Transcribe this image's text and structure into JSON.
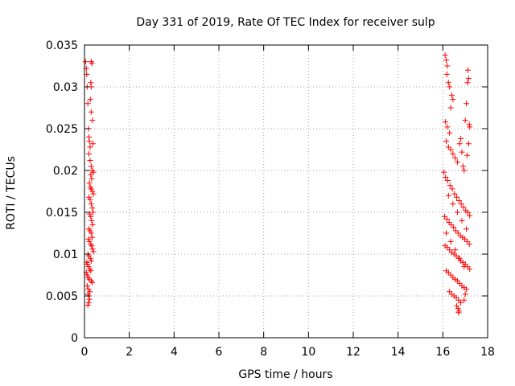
{
  "chart_data": {
    "type": "scatter",
    "title": "Day 331 of 2019, Rate Of TEC Index for receiver sulp",
    "xlabel": "GPS time / hours",
    "ylabel": "ROTI / TECUs",
    "xlim": [
      0,
      18
    ],
    "ylim": [
      0,
      0.035
    ],
    "grid": true,
    "marker": "+",
    "series_color": "#ff0000",
    "xticks": [
      0,
      2,
      4,
      6,
      8,
      10,
      12,
      14,
      16,
      18
    ],
    "xtick_labels": [
      "0",
      "2",
      "4",
      "6",
      "8",
      "10",
      "12",
      "14",
      "16",
      "18"
    ],
    "yticks": [
      0,
      0.005,
      0.01,
      0.015,
      0.02,
      0.025,
      0.03,
      0.035
    ],
    "ytick_labels": [
      "0",
      "0.005",
      "0.01",
      "0.015",
      "0.02",
      "0.025",
      "0.03",
      "0.035"
    ],
    "series": [
      {
        "name": "ROTI",
        "points": [
          [
            0.05,
            0.033
          ],
          [
            0.08,
            0.0322
          ],
          [
            0.1,
            0.0315
          ],
          [
            0.12,
            0.03
          ],
          [
            0.15,
            0.028
          ],
          [
            0.18,
            0.025
          ],
          [
            0.2,
            0.024
          ],
          [
            0.22,
            0.0235
          ],
          [
            0.25,
            0.0228
          ],
          [
            0.3,
            0.033
          ],
          [
            0.33,
            0.0328
          ],
          [
            0.28,
            0.0305
          ],
          [
            0.3,
            0.03
          ],
          [
            0.26,
            0.0285
          ],
          [
            0.3,
            0.027
          ],
          [
            0.35,
            0.026
          ],
          [
            0.38,
            0.0232
          ],
          [
            0.2,
            0.022
          ],
          [
            0.25,
            0.0212
          ],
          [
            0.3,
            0.0205
          ],
          [
            0.35,
            0.02
          ],
          [
            0.4,
            0.0198
          ],
          [
            0.28,
            0.0195
          ],
          [
            0.32,
            0.019
          ],
          [
            0.22,
            0.0185
          ],
          [
            0.26,
            0.018
          ],
          [
            0.3,
            0.0178
          ],
          [
            0.35,
            0.0175
          ],
          [
            0.4,
            0.0172
          ],
          [
            0.2,
            0.0168
          ],
          [
            0.25,
            0.0165
          ],
          [
            0.3,
            0.016
          ],
          [
            0.35,
            0.0155
          ],
          [
            0.38,
            0.015
          ],
          [
            0.22,
            0.0148
          ],
          [
            0.28,
            0.0145
          ],
          [
            0.32,
            0.014
          ],
          [
            0.36,
            0.0135
          ],
          [
            0.2,
            0.013
          ],
          [
            0.25,
            0.0128
          ],
          [
            0.3,
            0.0125
          ],
          [
            0.34,
            0.012
          ],
          [
            0.18,
            0.0118
          ],
          [
            0.22,
            0.0115
          ],
          [
            0.28,
            0.0112
          ],
          [
            0.32,
            0.011
          ],
          [
            0.36,
            0.0106
          ],
          [
            0.4,
            0.0103
          ],
          [
            0.15,
            0.01
          ],
          [
            0.2,
            0.0098
          ],
          [
            0.26,
            0.0095
          ],
          [
            0.3,
            0.0092
          ],
          [
            0.1,
            0.009
          ],
          [
            0.14,
            0.0088
          ],
          [
            0.18,
            0.0085
          ],
          [
            0.24,
            0.0082
          ],
          [
            0.28,
            0.008
          ],
          [
            0.08,
            0.0078
          ],
          [
            0.12,
            0.0075
          ],
          [
            0.16,
            0.0072
          ],
          [
            0.22,
            0.007
          ],
          [
            0.3,
            0.0068
          ],
          [
            0.35,
            0.0066
          ],
          [
            0.12,
            0.0062
          ],
          [
            0.18,
            0.0058
          ],
          [
            0.24,
            0.0055
          ],
          [
            0.15,
            0.0052
          ],
          [
            0.2,
            0.005
          ],
          [
            0.22,
            0.0046
          ],
          [
            0.18,
            0.0042
          ],
          [
            0.15,
            0.0039
          ],
          [
            16.1,
            0.0338
          ],
          [
            16.15,
            0.0332
          ],
          [
            16.2,
            0.0325
          ],
          [
            16.18,
            0.0315
          ],
          [
            16.25,
            0.0305
          ],
          [
            16.3,
            0.03
          ],
          [
            16.4,
            0.029
          ],
          [
            16.45,
            0.0285
          ],
          [
            16.35,
            0.0275
          ],
          [
            16.12,
            0.0258
          ],
          [
            16.2,
            0.0252
          ],
          [
            16.3,
            0.0245
          ],
          [
            16.15,
            0.0235
          ],
          [
            16.25,
            0.0228
          ],
          [
            16.35,
            0.0225
          ],
          [
            16.45,
            0.022
          ],
          [
            16.55,
            0.0215
          ],
          [
            16.65,
            0.021
          ],
          [
            16.75,
            0.0232
          ],
          [
            16.8,
            0.0238
          ],
          [
            16.85,
            0.0222
          ],
          [
            16.9,
            0.0205
          ],
          [
            16.95,
            0.02
          ],
          [
            17.0,
            0.026
          ],
          [
            17.05,
            0.028
          ],
          [
            17.1,
            0.0305
          ],
          [
            17.12,
            0.032
          ],
          [
            17.15,
            0.031
          ],
          [
            17.18,
            0.0255
          ],
          [
            17.2,
            0.0252
          ],
          [
            17.15,
            0.0232
          ],
          [
            17.08,
            0.0218
          ],
          [
            16.05,
            0.0198
          ],
          [
            16.12,
            0.0192
          ],
          [
            16.22,
            0.0188
          ],
          [
            16.32,
            0.0182
          ],
          [
            16.42,
            0.0178
          ],
          [
            16.52,
            0.0172
          ],
          [
            16.62,
            0.0168
          ],
          [
            16.72,
            0.0164
          ],
          [
            16.82,
            0.016
          ],
          [
            16.92,
            0.0156
          ],
          [
            17.02,
            0.0152
          ],
          [
            17.12,
            0.015
          ],
          [
            17.2,
            0.0146
          ],
          [
            16.08,
            0.0145
          ],
          [
            16.18,
            0.0142
          ],
          [
            16.28,
            0.0138
          ],
          [
            16.38,
            0.0135
          ],
          [
            16.48,
            0.0132
          ],
          [
            16.58,
            0.0128
          ],
          [
            16.68,
            0.0125
          ],
          [
            16.78,
            0.0122
          ],
          [
            16.88,
            0.012
          ],
          [
            16.98,
            0.0118
          ],
          [
            17.08,
            0.0115
          ],
          [
            17.18,
            0.0112
          ],
          [
            16.1,
            0.011
          ],
          [
            16.2,
            0.0108
          ],
          [
            16.3,
            0.0105
          ],
          [
            16.4,
            0.0102
          ],
          [
            16.5,
            0.01
          ],
          [
            16.6,
            0.0098
          ],
          [
            16.7,
            0.0095
          ],
          [
            16.8,
            0.0092
          ],
          [
            16.9,
            0.009
          ],
          [
            17.0,
            0.0088
          ],
          [
            17.1,
            0.0085
          ],
          [
            17.2,
            0.0082
          ],
          [
            16.15,
            0.008
          ],
          [
            16.25,
            0.0078
          ],
          [
            16.35,
            0.0075
          ],
          [
            16.45,
            0.0072
          ],
          [
            16.55,
            0.007
          ],
          [
            16.65,
            0.0068
          ],
          [
            16.75,
            0.0065
          ],
          [
            16.85,
            0.0062
          ],
          [
            16.95,
            0.006
          ],
          [
            17.05,
            0.0058
          ],
          [
            16.3,
            0.0055
          ],
          [
            16.4,
            0.0052
          ],
          [
            16.5,
            0.005
          ],
          [
            16.6,
            0.0048
          ],
          [
            16.7,
            0.0045
          ],
          [
            16.8,
            0.0042
          ],
          [
            16.62,
            0.0038
          ],
          [
            16.68,
            0.0035
          ],
          [
            16.72,
            0.0032
          ],
          [
            16.7,
            0.003
          ],
          [
            16.95,
            0.0045
          ],
          [
            17.0,
            0.0052
          ],
          [
            16.25,
            0.017
          ],
          [
            16.45,
            0.016
          ],
          [
            16.65,
            0.015
          ],
          [
            16.85,
            0.014
          ],
          [
            17.05,
            0.013
          ],
          [
            16.15,
            0.0125
          ],
          [
            16.35,
            0.0115
          ],
          [
            16.55,
            0.0105
          ],
          [
            16.75,
            0.0095
          ],
          [
            16.95,
            0.0085
          ]
        ]
      }
    ]
  }
}
